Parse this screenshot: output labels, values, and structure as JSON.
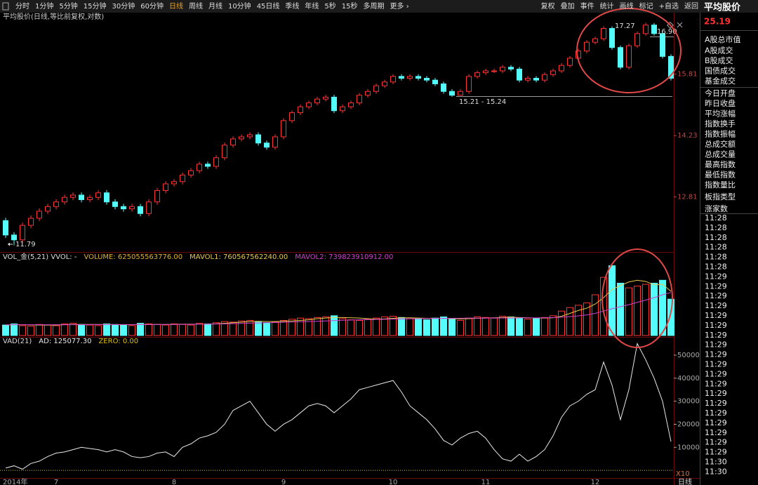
{
  "toolbar": {
    "periods": [
      "分时",
      "1分钟",
      "5分钟",
      "15分钟",
      "30分钟",
      "60分钟",
      "日线",
      "周线",
      "月线",
      "10分钟",
      "45日线",
      "季线",
      "年线",
      "5秒",
      "15秒",
      "多周期",
      "更多 ›"
    ],
    "active_index": 6,
    "actions": [
      "复权",
      "叠加",
      "事件",
      "统计",
      "画线",
      "标记",
      "+自选",
      "返回"
    ]
  },
  "sidebar": {
    "title": "平均股价",
    "value": "25.19",
    "items": [
      "A股总市值",
      "A股成交",
      "B股成交",
      "国债成交",
      "基金成交",
      "今日开盘",
      "昨日收盘",
      "平均涨幅",
      "指数换手",
      "指数振幅",
      "总成交额",
      "总成交量",
      "最高指数",
      "最低指数",
      "指数量比",
      "板指类型",
      "涨家数"
    ],
    "times": [
      "11:28",
      "11:28",
      "11:28",
      "11:28",
      "11:28",
      "11:28",
      "11:29",
      "11:29",
      "11:29",
      "11:29",
      "11:29",
      "11:29",
      "11:29",
      "11:29",
      "11:29",
      "11:29",
      "11:29",
      "11:29",
      "11:29",
      "11:29",
      "11:29",
      "11:29",
      "11:29",
      "11:29",
      "11:29",
      "11:30",
      "11:30"
    ]
  },
  "chart_data": [
    {
      "type": "candlestick",
      "title": "平均股价(日线,等比前复权,对数)",
      "log": true,
      "up_color": "#ff3232",
      "down_color": "#54fcfc",
      "ylim": [
        11.67,
        17.57
      ],
      "yticks": [
        12.81,
        14.23,
        15.81
      ],
      "annotations": [
        "11.79",
        "17.27",
        "16.90",
        "15.21 - 15.24"
      ],
      "open": [
        12.3,
        12.0,
        11.9,
        12.2,
        12.35,
        12.5,
        12.6,
        12.7,
        12.8,
        12.85,
        12.75,
        12.8,
        12.9,
        12.7,
        12.6,
        12.55,
        12.6,
        12.45,
        12.7,
        12.95,
        13.1,
        13.15,
        13.3,
        13.4,
        13.55,
        13.5,
        13.7,
        14.0,
        14.15,
        14.2,
        14.25,
        14.05,
        13.95,
        14.2,
        14.6,
        14.8,
        14.95,
        15.05,
        15.15,
        15.2,
        14.85,
        14.95,
        15.05,
        15.25,
        15.35,
        15.5,
        15.6,
        15.75,
        15.7,
        15.75,
        15.7,
        15.65,
        15.55,
        15.35,
        15.25,
        15.35,
        15.75,
        15.85,
        15.9,
        15.9,
        16.0,
        15.95,
        15.65,
        15.7,
        15.65,
        15.8,
        15.9,
        16.05,
        16.25,
        16.45,
        16.7,
        16.8,
        17.1,
        16.55,
        16.0,
        16.6,
        16.95,
        17.2,
        16.95,
        16.3
      ],
      "high": [
        12.36,
        12.06,
        12.26,
        12.41,
        12.56,
        12.66,
        12.76,
        12.86,
        12.91,
        12.91,
        12.86,
        12.96,
        12.96,
        12.76,
        12.66,
        12.66,
        12.66,
        12.76,
        13.01,
        13.16,
        13.21,
        13.36,
        13.46,
        13.61,
        13.61,
        13.76,
        14.06,
        14.21,
        14.26,
        14.31,
        14.31,
        14.11,
        14.26,
        14.66,
        14.86,
        15.01,
        15.11,
        15.21,
        15.26,
        15.26,
        15.01,
        15.11,
        15.31,
        15.41,
        15.56,
        15.66,
        15.81,
        15.81,
        15.81,
        15.81,
        15.76,
        15.71,
        15.61,
        15.41,
        15.41,
        15.81,
        15.91,
        15.96,
        15.96,
        16.06,
        16.06,
        16.01,
        15.76,
        15.76,
        15.86,
        15.96,
        16.11,
        16.31,
        16.51,
        16.76,
        16.86,
        17.16,
        17.16,
        16.61,
        16.66,
        17.01,
        17.27,
        17.26,
        17.01,
        16.36
      ],
      "low": [
        11.94,
        11.79,
        11.84,
        12.14,
        12.29,
        12.44,
        12.54,
        12.64,
        12.74,
        12.69,
        12.69,
        12.74,
        12.64,
        12.54,
        12.49,
        12.49,
        12.39,
        12.39,
        12.64,
        12.89,
        13.04,
        13.09,
        13.24,
        13.34,
        13.44,
        13.44,
        13.64,
        13.94,
        14.09,
        14.14,
        13.99,
        13.89,
        13.89,
        14.14,
        14.54,
        14.74,
        14.89,
        14.99,
        15.09,
        14.79,
        14.79,
        14.89,
        14.99,
        15.19,
        15.29,
        15.44,
        15.54,
        15.64,
        15.64,
        15.64,
        15.59,
        15.49,
        15.29,
        15.21,
        15.24,
        15.29,
        15.69,
        15.79,
        15.84,
        15.84,
        15.89,
        15.59,
        15.59,
        15.59,
        15.59,
        15.74,
        15.84,
        15.99,
        16.19,
        16.39,
        16.64,
        16.74,
        16.49,
        15.94,
        15.94,
        16.54,
        16.89,
        16.89,
        16.24,
        15.64
      ],
      "close": [
        12.0,
        11.9,
        12.2,
        12.35,
        12.5,
        12.6,
        12.7,
        12.8,
        12.85,
        12.75,
        12.8,
        12.9,
        12.7,
        12.6,
        12.55,
        12.6,
        12.45,
        12.7,
        12.95,
        13.1,
        13.15,
        13.3,
        13.4,
        13.55,
        13.5,
        13.7,
        14.0,
        14.15,
        14.2,
        14.25,
        14.05,
        13.95,
        14.2,
        14.6,
        14.8,
        14.95,
        15.05,
        15.15,
        15.2,
        14.85,
        14.95,
        15.05,
        15.25,
        15.35,
        15.5,
        15.6,
        15.75,
        15.7,
        15.75,
        15.7,
        15.65,
        15.55,
        15.35,
        15.25,
        15.35,
        15.75,
        15.85,
        15.9,
        15.9,
        16.0,
        15.95,
        15.65,
        15.7,
        15.65,
        15.8,
        15.9,
        16.05,
        16.25,
        16.45,
        16.7,
        16.8,
        17.1,
        16.55,
        16.0,
        16.6,
        16.95,
        17.2,
        16.95,
        16.3,
        15.7
      ]
    },
    {
      "type": "bar",
      "title": "VOL_金(5,21)  VVOL: -",
      "ylim": [
        0,
        1400000000000.0
      ],
      "series": [
        {
          "name": "VOLUME: 625055563776.00",
          "kind": "bar",
          "color": "#e0b030",
          "values": [
            180000000000.0,
            200000000000.0,
            170000000000.0,
            160000000000.0,
            190000000000.0,
            180000000000.0,
            170000000000.0,
            200000000000.0,
            210000000000.0,
            190000000000.0,
            180000000000.0,
            170000000000.0,
            200000000000.0,
            190000000000.0,
            180000000000.0,
            170000000000.0,
            210000000000.0,
            200000000000.0,
            190000000000.0,
            180000000000.0,
            200000000000.0,
            190000000000.0,
            180000000000.0,
            210000000000.0,
            200000000000.0,
            220000000000.0,
            240000000000.0,
            230000000000.0,
            250000000000.0,
            260000000000.0,
            240000000000.0,
            220000000000.0,
            230000000000.0,
            260000000000.0,
            280000000000.0,
            300000000000.0,
            290000000000.0,
            310000000000.0,
            320000000000.0,
            340000000000.0,
            290000000000.0,
            270000000000.0,
            260000000000.0,
            280000000000.0,
            300000000000.0,
            320000000000.0,
            330000000000.0,
            310000000000.0,
            290000000000.0,
            280000000000.0,
            270000000000.0,
            300000000000.0,
            320000000000.0,
            280000000000.0,
            260000000000.0,
            300000000000.0,
            320000000000.0,
            310000000000.0,
            300000000000.0,
            330000000000.0,
            320000000000.0,
            300000000000.0,
            280000000000.0,
            290000000000.0,
            310000000000.0,
            340000000000.0,
            420000000000.0,
            480000000000.0,
            520000000000.0,
            560000000000.0,
            700000000000.0,
            1000000000000.0,
            1200000000000.0,
            900000000000.0,
            820000000000.0,
            850000000000.0,
            880000000000.0,
            900000000000.0,
            950000000000.0,
            625055563776
          ]
        },
        {
          "name": "MAVOL1: 760567562240.00",
          "kind": "line",
          "color": "#e8c84a",
          "values": [
            180000000000.0,
            185000000000.0,
            185000000000.0,
            182000000000.0,
            180000000000.0,
            180000000000.0,
            180000000000.0,
            185000000000.0,
            190000000000.0,
            190000000000.0,
            190000000000.0,
            190000000000.0,
            190000000000.0,
            185000000000.0,
            185000000000.0,
            185000000000.0,
            190000000000.0,
            190000000000.0,
            190000000000.0,
            190000000000.0,
            190000000000.0,
            195000000000.0,
            195000000000.0,
            195000000000.0,
            195000000000.0,
            200000000000.0,
            210000000000.0,
            220000000000.0,
            230000000000.0,
            240000000000.0,
            245000000000.0,
            240000000000.0,
            240000000000.0,
            245000000000.0,
            250000000000.0,
            260000000000.0,
            270000000000.0,
            290000000000.0,
            300000000000.0,
            310000000000.0,
            310000000000.0,
            305000000000.0,
            300000000000.0,
            290000000000.0,
            280000000000.0,
            285000000000.0,
            295000000000.0,
            305000000000.0,
            305000000000.0,
            300000000000.0,
            295000000000.0,
            295000000000.0,
            295000000000.0,
            290000000000.0,
            285000000000.0,
            290000000000.0,
            295000000000.0,
            300000000000.0,
            305000000000.0,
            310000000000.0,
            315000000000.0,
            310000000000.0,
            305000000000.0,
            300000000000.0,
            300000000000.0,
            305000000000.0,
            330000000000.0,
            380000000000.0,
            430000000000.0,
            470000000000.0,
            540000000000.0,
            650000000000.0,
            790000000000.0,
            860000000000.0,
            920000000000.0,
            950000000000.0,
            930000000000.0,
            870000000000.0,
            880000000000.0,
            760567562240
          ]
        },
        {
          "name": "MAVOL2: 739823910912.00",
          "kind": "line",
          "color": "#d040d0",
          "values": [
            185000000000.0,
            185000000000.0,
            185000000000.0,
            185000000000.0,
            185000000000.0,
            185000000000.0,
            185000000000.0,
            185000000000.0,
            186000000000.0,
            186000000000.0,
            187000000000.0,
            187000000000.0,
            188000000000.0,
            188000000000.0,
            188000000000.0,
            188000000000.0,
            188000000000.0,
            189000000000.0,
            189000000000.0,
            190000000000.0,
            190000000000.0,
            191000000000.0,
            192000000000.0,
            193000000000.0,
            195000000000.0,
            197000000000.0,
            200000000000.0,
            204000000000.0,
            208000000000.0,
            212000000000.0,
            216000000000.0,
            220000000000.0,
            224000000000.0,
            228000000000.0,
            232000000000.0,
            236000000000.0,
            240000000000.0,
            245000000000.0,
            250000000000.0,
            256000000000.0,
            262000000000.0,
            266000000000.0,
            270000000000.0,
            273000000000.0,
            276000000000.0,
            279000000000.0,
            282000000000.0,
            285000000000.0,
            288000000000.0,
            290000000000.0,
            292000000000.0,
            294000000000.0,
            295000000000.0,
            296000000000.0,
            297000000000.0,
            298000000000.0,
            299000000000.0,
            300000000000.0,
            300000000000.0,
            301000000000.0,
            302000000000.0,
            303000000000.0,
            303000000000.0,
            303000000000.0,
            304000000000.0,
            308000000000.0,
            315000000000.0,
            325000000000.0,
            338000000000.0,
            355000000000.0,
            380000000000.0,
            420000000000.0,
            460000000000.0,
            495000000000.0,
            530000000000.0,
            570000000000.0,
            610000000000.0,
            650000000000.0,
            700000000000.0,
            739823910912
          ]
        }
      ]
    },
    {
      "type": "line",
      "title": "VAD(21)",
      "ylim": [
        -3000,
        57300
      ],
      "yticks": [
        10000,
        20000,
        30000,
        40000,
        50000
      ],
      "multiplier_label": "X10",
      "xlabel": "日线",
      "zero_line": {
        "name": "ZERO: 0.00",
        "value": 0,
        "color": "#e0c000"
      },
      "categories": [
        "2014年",
        null,
        null,
        null,
        null,
        null,
        "7",
        null,
        null,
        null,
        null,
        null,
        null,
        null,
        null,
        null,
        null,
        null,
        null,
        null,
        "8",
        null,
        null,
        null,
        null,
        null,
        null,
        null,
        null,
        null,
        null,
        null,
        null,
        "9",
        null,
        null,
        null,
        null,
        null,
        null,
        null,
        null,
        null,
        null,
        null,
        null,
        "10",
        null,
        null,
        null,
        null,
        null,
        null,
        null,
        null,
        null,
        null,
        "11",
        null,
        null,
        null,
        null,
        null,
        null,
        null,
        null,
        null,
        null,
        null,
        null,
        "12",
        null,
        null,
        null,
        null,
        null,
        null,
        null,
        null,
        null
      ],
      "series": [
        {
          "name": "AD: 125077.30",
          "color": "#e8e8e8",
          "values": [
            1000,
            2000,
            500,
            3000,
            4000,
            6000,
            7500,
            8000,
            9000,
            10000,
            9500,
            9000,
            8000,
            9000,
            8000,
            6000,
            5500,
            6000,
            7500,
            8000,
            6000,
            10000,
            11500,
            14000,
            15000,
            16500,
            20000,
            26000,
            28000,
            30000,
            25000,
            20000,
            17000,
            20000,
            22000,
            25000,
            28000,
            29000,
            28000,
            25000,
            28000,
            31000,
            35000,
            36000,
            37000,
            38000,
            39000,
            34000,
            28000,
            25000,
            22000,
            18000,
            13000,
            11000,
            14000,
            16000,
            17000,
            14000,
            9000,
            5000,
            4000,
            7000,
            4000,
            6000,
            9000,
            15000,
            23000,
            28000,
            30000,
            33000,
            35000,
            47000,
            37000,
            22000,
            35000,
            55000,
            48000,
            40000,
            30000,
            12507.73
          ]
        }
      ]
    }
  ]
}
